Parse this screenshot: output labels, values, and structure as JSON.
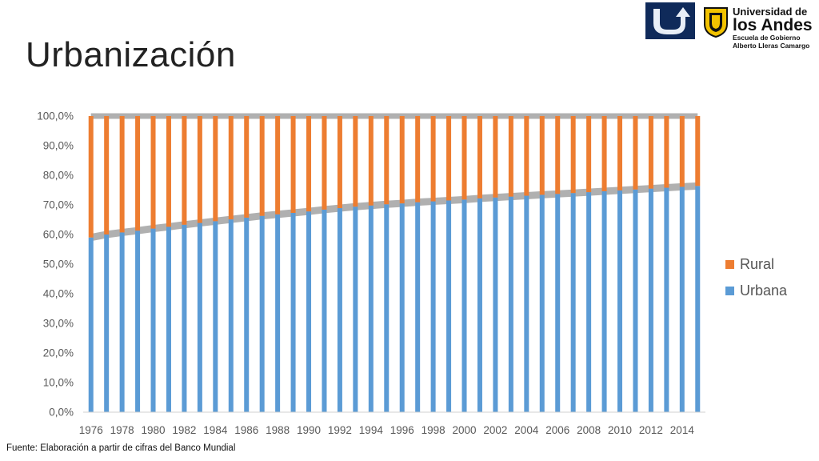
{
  "slide": {
    "title": "Urbanización",
    "source": "Fuente: Elaboración a partir de cifras del Banco Mundial"
  },
  "logo": {
    "line1": "Universidad de",
    "line2": "los Andes",
    "line3": "Escuela de Gobierno",
    "line4": "Alberto Lleras Camargo",
    "box_color": "#0f2a5a",
    "shield_color": "#f2c200",
    "icon": "u-arrow-logo-icon"
  },
  "chart_data": {
    "type": "bar",
    "stacked": true,
    "xlabel": "",
    "ylabel": "",
    "ylim": [
      0,
      100
    ],
    "y_ticks": [
      "0,0%",
      "10,0%",
      "20,0%",
      "30,0%",
      "40,0%",
      "50,0%",
      "60,0%",
      "70,0%",
      "80,0%",
      "90,0%",
      "100,0%"
    ],
    "x_tick_labels": [
      "1976",
      "1978",
      "1980",
      "1982",
      "1984",
      "1986",
      "1988",
      "1990",
      "1992",
      "1994",
      "1996",
      "1998",
      "2000",
      "2002",
      "2004",
      "2006",
      "2008",
      "2010",
      "2012",
      "2014"
    ],
    "categories": [
      "1976",
      "1977",
      "1978",
      "1979",
      "1980",
      "1981",
      "1982",
      "1983",
      "1984",
      "1985",
      "1986",
      "1987",
      "1988",
      "1989",
      "1990",
      "1991",
      "1992",
      "1993",
      "1994",
      "1995",
      "1996",
      "1997",
      "1998",
      "1999",
      "2000",
      "2001",
      "2002",
      "2003",
      "2004",
      "2005",
      "2006",
      "2007",
      "2008",
      "2009",
      "2010",
      "2011",
      "2012",
      "2013",
      "2014",
      "2015"
    ],
    "series": [
      {
        "name": "Urbana",
        "color": "#5b9bd5",
        "values": [
          59.0,
          60.0,
          60.7,
          61.3,
          62.0,
          62.6,
          63.3,
          63.9,
          64.5,
          65.1,
          65.7,
          66.3,
          66.8,
          67.3,
          67.8,
          68.4,
          68.9,
          69.4,
          69.8,
          70.2,
          70.5,
          70.9,
          71.2,
          71.5,
          71.8,
          72.2,
          72.5,
          72.8,
          73.1,
          73.4,
          73.7,
          74.0,
          74.3,
          74.6,
          74.9,
          75.2,
          75.5,
          75.8,
          76.1,
          76.4
        ]
      },
      {
        "name": "Rural",
        "color": "#ed7d31",
        "values": [
          41.0,
          40.0,
          39.3,
          38.7,
          38.0,
          37.4,
          36.7,
          36.1,
          35.5,
          34.9,
          34.3,
          33.7,
          33.2,
          32.7,
          32.2,
          31.6,
          31.1,
          30.6,
          30.2,
          29.8,
          29.5,
          29.1,
          28.8,
          28.5,
          28.2,
          27.8,
          27.5,
          27.2,
          26.9,
          26.6,
          26.3,
          26.0,
          25.7,
          25.4,
          25.1,
          24.8,
          24.5,
          24.2,
          23.9,
          23.6
        ]
      }
    ],
    "legend_order": [
      "Rural",
      "Urbana"
    ],
    "legend_position": "right",
    "connector_color": "#b0b0b0",
    "grid": false
  }
}
